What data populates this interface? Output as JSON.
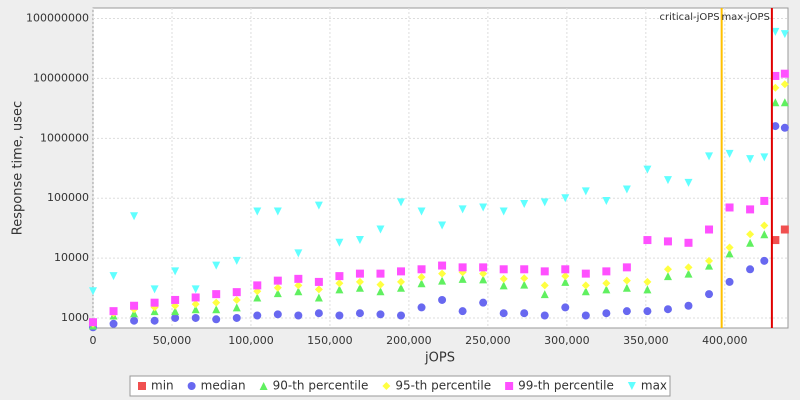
{
  "chart_data": {
    "type": "scatter",
    "x_label": "jOPS",
    "y_label": "Response time, usec",
    "x": [
      0,
      13000,
      26000,
      39000,
      52000,
      65000,
      78000,
      91000,
      104000,
      117000,
      130000,
      143000,
      156000,
      169000,
      182000,
      195000,
      208000,
      221000,
      234000,
      247000,
      260000,
      273000,
      286000,
      299000,
      312000,
      325000,
      338000,
      351000,
      364000,
      377000,
      390000,
      403000,
      416000,
      425000,
      432000,
      438000
    ],
    "series": [
      {
        "name": "min",
        "color": "#f05050",
        "marker": "square",
        "values": [
          null,
          null,
          null,
          null,
          null,
          null,
          null,
          null,
          null,
          null,
          null,
          null,
          null,
          null,
          null,
          null,
          null,
          null,
          null,
          null,
          null,
          null,
          null,
          null,
          null,
          null,
          null,
          null,
          null,
          null,
          null,
          null,
          null,
          null,
          20000,
          30000
        ]
      },
      {
        "name": "median",
        "color": "#6868f0",
        "marker": "circle",
        "values": [
          700,
          800,
          900,
          900,
          1000,
          1000,
          950,
          1000,
          1100,
          1150,
          1100,
          1200,
          1100,
          1200,
          1150,
          1100,
          1500,
          2000,
          1300,
          1800,
          1200,
          1200,
          1100,
          1500,
          1100,
          1200,
          1300,
          1300,
          1400,
          1600,
          2500,
          4000,
          6500,
          9000,
          1600000,
          1500000
        ]
      },
      {
        "name": "90-th percentile",
        "color": "#60f060",
        "marker": "triangle",
        "values": [
          750,
          1100,
          1200,
          1300,
          1300,
          1400,
          1400,
          1500,
          2200,
          2600,
          2800,
          2200,
          3000,
          3200,
          2800,
          3200,
          3800,
          4200,
          4500,
          4400,
          3500,
          3600,
          2500,
          4000,
          2800,
          3000,
          3200,
          3000,
          5000,
          5500,
          7500,
          12000,
          18000,
          25000,
          4000000,
          4000000
        ]
      },
      {
        "name": "95-th percentile",
        "color": "#ffff40",
        "marker": "diamond",
        "values": [
          800,
          1200,
          1400,
          1500,
          1600,
          1700,
          1800,
          2000,
          2800,
          3200,
          3500,
          3000,
          3800,
          4000,
          3600,
          4000,
          4800,
          5500,
          5800,
          5500,
          4500,
          4600,
          3500,
          5000,
          3500,
          3800,
          4200,
          4000,
          6500,
          7000,
          9000,
          15000,
          25000,
          35000,
          7000000,
          8000000
        ]
      },
      {
        "name": "99-th percentile",
        "color": "#ff50ff",
        "marker": "square",
        "values": [
          850,
          1300,
          1600,
          1800,
          2000,
          2200,
          2500,
          2700,
          3500,
          4200,
          4500,
          4000,
          5000,
          5500,
          5500,
          6000,
          6500,
          7500,
          7000,
          7000,
          6500,
          6500,
          6000,
          6500,
          5500,
          6000,
          7000,
          20000,
          19000,
          18000,
          30000,
          70000,
          65000,
          90000,
          11000000,
          12000000
        ]
      },
      {
        "name": "max",
        "color": "#60ffff",
        "marker": "down-triangle",
        "values": [
          2800,
          5000,
          50000,
          3000,
          6000,
          3000,
          7500,
          9000,
          60000,
          60000,
          12000,
          75000,
          18000,
          20000,
          30000,
          85000,
          60000,
          35000,
          65000,
          70000,
          60000,
          80000,
          85000,
          100000,
          130000,
          90000,
          140000,
          300000,
          200000,
          180000,
          500000,
          550000,
          450000,
          480000,
          60000000,
          55000000
        ]
      }
    ],
    "xlim": [
      0,
      440000
    ],
    "xticks": [
      0,
      {
        "value": 50000,
        "label": "50,000"
      },
      {
        "value": 100000,
        "label": "100,000"
      },
      {
        "value": 150000,
        "label": "150,000"
      },
      {
        "value": 200000,
        "label": "200,000"
      },
      {
        "value": 250000,
        "label": "250,000"
      },
      {
        "value": 300000,
        "label": "300,000"
      },
      {
        "value": 350000,
        "label": "350,000"
      },
      {
        "value": 400000,
        "label": "400,000"
      }
    ],
    "ylim": [
      680,
      150000000
    ],
    "yticks": [
      1000,
      10000,
      100000,
      1000000,
      10000000,
      100000000
    ],
    "log_y": true,
    "grid": true,
    "reference_lines": [
      {
        "label": "critical-jOPS",
        "value": 398000,
        "color": "#ffc000"
      },
      {
        "label": "max-jOPS",
        "value": 429800,
        "color": "#e00000"
      }
    ]
  }
}
